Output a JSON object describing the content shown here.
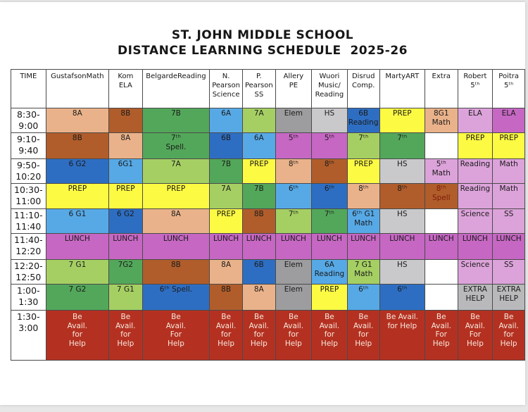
{
  "page": {
    "title_line1": "ST. JOHN MIDDLE SCHOOL",
    "title_line2": "DISTANCE LEARNING SCHEDULE  2025-26"
  },
  "colors": {
    "white": "#ffffff",
    "peach": "#eab28a",
    "brown": "#b05d2b",
    "green": "#53a75a",
    "light_green": "#a5cf63",
    "blue": "#57a9e6",
    "dark_blue": "#2e6ec2",
    "yellow": "#fdfa43",
    "gray": "#9d9d9f",
    "light_gray": "#c9c9cb",
    "mid_gray": "#b9b9bb",
    "orchid": "#c667c3",
    "plum": "#dca3da",
    "red": "#b43122",
    "red_text": "#f6e9dc",
    "maroon_text": "#7e1a0c",
    "ink": "#1b1b1b"
  },
  "schedule": {
    "columns": [
      {
        "id": "time",
        "label": "TIME"
      },
      {
        "id": "gustafson",
        "label": "GustafsonMath"
      },
      {
        "id": "kom",
        "label": "Kom\nELA"
      },
      {
        "id": "belgarde",
        "label": "BelgardeReading"
      },
      {
        "id": "n-pearson",
        "label": "N.\nPearson\nScience"
      },
      {
        "id": "p-pearson",
        "label": "P.\nPearson\nSS"
      },
      {
        "id": "allery",
        "label": "Allery\nPE"
      },
      {
        "id": "wuori",
        "label": "Wuori\nMusic/\nReading"
      },
      {
        "id": "disrud",
        "label": "Disrud\nComp."
      },
      {
        "id": "marty",
        "label": "MartyART"
      },
      {
        "id": "extra",
        "label": "Extra"
      },
      {
        "id": "robert",
        "label": "Robert\n5ᵗʰ"
      },
      {
        "id": "poitra",
        "label": "Poitra\n5ᵗʰ"
      }
    ],
    "rows": [
      {
        "time": "8:30-\n9:00",
        "cells": [
          {
            "t": "8A",
            "c": "peach"
          },
          {
            "t": "8B",
            "c": "brown"
          },
          {
            "t": "7B",
            "c": "green"
          },
          {
            "t": "6A",
            "c": "blue"
          },
          {
            "t": "7A",
            "c": "light_green"
          },
          {
            "t": "Elem",
            "c": "gray"
          },
          {
            "t": "HS",
            "c": "light_gray"
          },
          {
            "t": "6B\nReading",
            "c": "dark_blue"
          },
          {
            "t": "PREP",
            "c": "yellow"
          },
          {
            "t": "8G1\nMath",
            "c": "peach"
          },
          {
            "t": "ELA",
            "c": "plum"
          },
          {
            "t": "ELA",
            "c": "orchid"
          }
        ]
      },
      {
        "time": "9:10-\n9:40",
        "cells": [
          {
            "t": "8B",
            "c": "brown"
          },
          {
            "t": "8A",
            "c": "peach"
          },
          {
            "t": "7ᵗʰ\nSpell.",
            "c": "green"
          },
          {
            "t": "6B",
            "c": "dark_blue"
          },
          {
            "t": "6A",
            "c": "blue"
          },
          {
            "t": "5ᵗʰ",
            "c": "orchid"
          },
          {
            "t": "5ᵗʰ",
            "c": "orchid"
          },
          {
            "t": "7ᵗʰ",
            "c": "light_green"
          },
          {
            "t": "7ᵗʰ",
            "c": "green"
          },
          {
            "t": "",
            "c": "white"
          },
          {
            "t": "PREP",
            "c": "yellow"
          },
          {
            "t": "PREP",
            "c": "yellow"
          }
        ]
      },
      {
        "time": "9:50-\n10:20",
        "cells": [
          {
            "t": "6 G2",
            "c": "dark_blue"
          },
          {
            "t": "6G1",
            "c": "blue"
          },
          {
            "t": "7A",
            "c": "light_green"
          },
          {
            "t": "7B",
            "c": "green"
          },
          {
            "t": "PREP",
            "c": "yellow"
          },
          {
            "t": "8ᵗʰ",
            "c": "peach"
          },
          {
            "t": "8ᵗʰ",
            "c": "brown"
          },
          {
            "t": "PREP",
            "c": "yellow"
          },
          {
            "t": "HS",
            "c": "light_gray"
          },
          {
            "t": "5ᵗʰ\nMath",
            "c": "plum"
          },
          {
            "t": "Reading",
            "c": "plum"
          },
          {
            "t": "Math",
            "c": "plum"
          }
        ]
      },
      {
        "time": "10:30-\n11:00",
        "cells": [
          {
            "t": "PREP",
            "c": "yellow"
          },
          {
            "t": "PREP",
            "c": "yellow"
          },
          {
            "t": "PREP",
            "c": "yellow"
          },
          {
            "t": "7A",
            "c": "light_green"
          },
          {
            "t": "7B",
            "c": "green"
          },
          {
            "t": "6ᵗʰ",
            "c": "blue"
          },
          {
            "t": "6ᵗʰ",
            "c": "dark_blue"
          },
          {
            "t": "8ᵗʰ",
            "c": "peach"
          },
          {
            "t": "8ᵗʰ",
            "c": "brown"
          },
          {
            "t": "8ᵗʰ\nSpell",
            "c": "brown",
            "tc": "maroon_text"
          },
          {
            "t": "Reading",
            "c": "plum"
          },
          {
            "t": "Math",
            "c": "plum"
          }
        ]
      },
      {
        "time": "11:10-\n11:40",
        "cells": [
          {
            "t": "6 G1",
            "c": "blue"
          },
          {
            "t": "6 G2",
            "c": "dark_blue"
          },
          {
            "t": "8A",
            "c": "peach"
          },
          {
            "t": "PREP",
            "c": "yellow"
          },
          {
            "t": "8B",
            "c": "brown"
          },
          {
            "t": "7ᵗʰ",
            "c": "light_green"
          },
          {
            "t": "7ᵗʰ",
            "c": "green"
          },
          {
            "t": "6ᵗʰ G1\nMath",
            "c": "blue"
          },
          {
            "t": "HS",
            "c": "light_gray"
          },
          {
            "t": "",
            "c": "white"
          },
          {
            "t": "Science",
            "c": "plum"
          },
          {
            "t": "SS",
            "c": "plum"
          }
        ]
      },
      {
        "time": "11:40-\n12:20",
        "cells": [
          {
            "t": "LUNCH",
            "c": "orchid"
          },
          {
            "t": "LUNCH",
            "c": "orchid"
          },
          {
            "t": "LUNCH",
            "c": "orchid"
          },
          {
            "t": "LUNCH",
            "c": "orchid"
          },
          {
            "t": "LUNCH",
            "c": "orchid"
          },
          {
            "t": "LUNCH",
            "c": "orchid"
          },
          {
            "t": "LUNCH",
            "c": "orchid"
          },
          {
            "t": "LUNCH",
            "c": "orchid"
          },
          {
            "t": "LUNCH",
            "c": "orchid"
          },
          {
            "t": "LUNCH",
            "c": "orchid"
          },
          {
            "t": "LUNCH",
            "c": "orchid"
          },
          {
            "t": "LUNCH",
            "c": "orchid"
          }
        ]
      },
      {
        "time": "12:20-\n12:50",
        "cells": [
          {
            "t": "7 G1",
            "c": "light_green"
          },
          {
            "t": "7G2",
            "c": "green"
          },
          {
            "t": "8B",
            "c": "brown"
          },
          {
            "t": "8A",
            "c": "peach"
          },
          {
            "t": "6B",
            "c": "dark_blue"
          },
          {
            "t": "Elem",
            "c": "gray"
          },
          {
            "t": "6A\nReading",
            "c": "blue"
          },
          {
            "t": "7 G1\nMath",
            "c": "light_green"
          },
          {
            "t": "HS",
            "c": "light_gray"
          },
          {
            "t": "",
            "c": "white"
          },
          {
            "t": "Science",
            "c": "plum"
          },
          {
            "t": "SS",
            "c": "plum"
          }
        ]
      },
      {
        "time": "1:00-\n1:30",
        "cells": [
          {
            "t": "7 G2",
            "c": "green"
          },
          {
            "t": "7 G1",
            "c": "light_green"
          },
          {
            "t": "6ᵗʰ Spell.",
            "c": "dark_blue"
          },
          {
            "t": "8B",
            "c": "brown"
          },
          {
            "t": "8A",
            "c": "peach"
          },
          {
            "t": "Elem",
            "c": "gray"
          },
          {
            "t": "PREP",
            "c": "yellow"
          },
          {
            "t": "6ᵗʰ",
            "c": "blue"
          },
          {
            "t": "6ᵗʰ",
            "c": "dark_blue"
          },
          {
            "t": "",
            "c": "white"
          },
          {
            "t": "EXTRA\nHELP",
            "c": "mid_gray"
          },
          {
            "t": "EXTRA\nHELP",
            "c": "mid_gray"
          }
        ]
      },
      {
        "time": "1:30-\n3:00",
        "cells": [
          {
            "t": "Be\nAvail.\nfor\nHelp",
            "c": "red"
          },
          {
            "t": "Be\nAvail.\nfor\nHelp",
            "c": "red"
          },
          {
            "t": "Be\nAvail.\nFor\nHelp",
            "c": "red"
          },
          {
            "t": "Be\nAvail.\nfor\nHelp",
            "c": "red"
          },
          {
            "t": "Be\nAvail.\nfor\nHelp",
            "c": "red"
          },
          {
            "t": "Be\nAvail.\nfor\nHelp",
            "c": "red"
          },
          {
            "t": "Be\nAvail.\nfor\nHelp",
            "c": "red"
          },
          {
            "t": "Be\nAvail.\nfor\nHelp",
            "c": "red"
          },
          {
            "t": "Be Avail.\nfor Help",
            "c": "red"
          },
          {
            "t": "Be\nAvail.\nFor\nHelp",
            "c": "red"
          },
          {
            "t": "Be\nAvail.\nFor\nHelp",
            "c": "red"
          },
          {
            "t": "Be\nAvail.\nfor\nHelp",
            "c": "red"
          }
        ]
      }
    ]
  }
}
